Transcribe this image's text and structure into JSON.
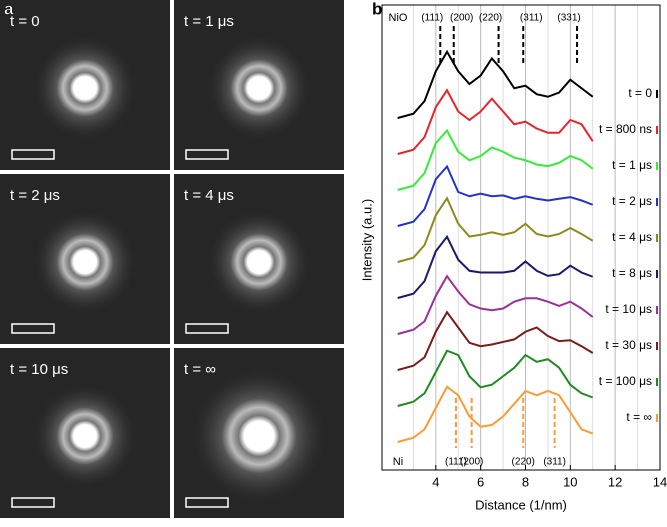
{
  "panel_a": {
    "label": "a",
    "images": [
      {
        "label": "t = 0"
      },
      {
        "label": "t = 1 μs"
      },
      {
        "label": "t = 2 μs"
      },
      {
        "label": "t = 4 μs"
      },
      {
        "label": "t = 10 μs"
      },
      {
        "label": "t = ∞"
      }
    ]
  },
  "chart_data": {
    "type": "line",
    "panel_label": "b",
    "xlabel": "Distance (1/nm)",
    "ylabel": "Intensity (a.u.)",
    "xlim": [
      1.6,
      14
    ],
    "xticks": [
      4,
      6,
      8,
      10,
      12,
      14
    ],
    "xgrid": [
      3,
      5,
      7,
      9,
      11,
      13
    ],
    "x": [
      2.3,
      3,
      3.5,
      4,
      4.5,
      5,
      5.5,
      6,
      6.5,
      7,
      7.5,
      8,
      8.5,
      9,
      9.5,
      10,
      10.5,
      11
    ],
    "series": [
      {
        "name": "t = 0",
        "color": "#000000",
        "values": [
          0,
          0.5,
          2,
          5.5,
          7.8,
          5.5,
          4,
          5,
          7,
          5.5,
          3.5,
          3.8,
          2.8,
          2.5,
          3,
          4.5,
          3.5,
          2.5
        ]
      },
      {
        "name": "t = 800 ns",
        "color": "#e8232a",
        "values": [
          0,
          0.5,
          2,
          5.5,
          7.5,
          5,
          4,
          5,
          6.5,
          5,
          3.5,
          3.8,
          3,
          2.5,
          2.5,
          4,
          3.5,
          1.5
        ]
      },
      {
        "name": "t = 1 μs",
        "color": "#33ee33",
        "values": [
          0,
          0.5,
          2,
          5.5,
          7,
          4.5,
          3.5,
          4,
          5,
          4.5,
          3.8,
          3.5,
          3,
          2.8,
          3.2,
          4,
          3.5,
          2.5
        ]
      },
      {
        "name": "t = 2 μs",
        "color": "#2233cc",
        "values": [
          0,
          0.5,
          2,
          5.5,
          7,
          4,
          3.5,
          3.8,
          3.5,
          3.6,
          3.2,
          3.5,
          3.2,
          3,
          3.2,
          3.4,
          3,
          2.5
        ]
      },
      {
        "name": "t = 4 μs",
        "color": "#8b8b1a",
        "values": [
          0,
          0.5,
          2,
          5.5,
          7.5,
          4.5,
          3,
          3.2,
          3.5,
          3.2,
          3.5,
          4.5,
          3.3,
          3,
          3.3,
          4,
          3.3,
          2.5
        ]
      },
      {
        "name": "t = 8 μs",
        "color": "#1a1a6b",
        "values": [
          0,
          0.5,
          2,
          5.5,
          7.2,
          4.5,
          3.2,
          3,
          3,
          3,
          3.2,
          4.3,
          3.2,
          2.6,
          2.8,
          3.8,
          3,
          2.5
        ]
      },
      {
        "name": "t = 10 μs",
        "color": "#9b2f9b",
        "values": [
          0,
          0.5,
          1.5,
          4.5,
          6.8,
          5,
          3.5,
          3,
          2.8,
          3,
          3.8,
          4.2,
          4.2,
          3.8,
          3.3,
          3.8,
          3,
          2
        ]
      },
      {
        "name": "t = 30 μs",
        "color": "#7b1a1a",
        "values": [
          0,
          0.5,
          1.5,
          4.5,
          6.8,
          5,
          3.2,
          2.8,
          3,
          3.3,
          3.6,
          4.5,
          5,
          4,
          3.4,
          3.5,
          2.8,
          2
        ]
      },
      {
        "name": "t = 100 μs",
        "color": "#1f8b1f",
        "values": [
          0,
          0.5,
          1.5,
          4,
          6.5,
          6,
          3.5,
          2.2,
          2.5,
          3.5,
          4.5,
          6,
          5.2,
          5.5,
          4.5,
          2.5,
          1.5,
          1
        ]
      },
      {
        "name": "t = ∞",
        "color": "#ff9933",
        "values": [
          0,
          0.5,
          1.5,
          4,
          6.5,
          5.5,
          3,
          1.8,
          2,
          3,
          4.5,
          6,
          5.5,
          6,
          5.5,
          3.5,
          1.5,
          1
        ]
      }
    ],
    "references": [
      {
        "name": "NiO",
        "color": "#000000",
        "peaks": [
          {
            "label": "(111)",
            "x": 4.2
          },
          {
            "label": "(200)",
            "x": 4.8
          },
          {
            "label": "(220)",
            "x": 6.8
          },
          {
            "label": "(311)",
            "x": 7.9
          },
          {
            "label": "(331)",
            "x": 10.3
          }
        ]
      },
      {
        "name": "Ni",
        "color": "#ff9933",
        "peaks": [
          {
            "label": "(111)",
            "x": 4.9
          },
          {
            "label": "(200)",
            "x": 5.6
          },
          {
            "label": "(220)",
            "x": 7.9
          },
          {
            "label": "(311)",
            "x": 9.3
          }
        ]
      }
    ]
  }
}
